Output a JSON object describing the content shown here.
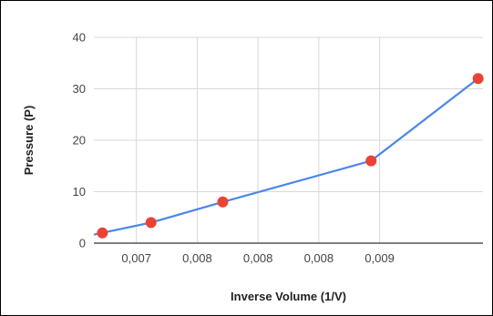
{
  "chart_data": {
    "type": "line",
    "title": "",
    "xlabel": "Inverse Volume (1/V)",
    "ylabel": "Pressure (P)",
    "xlim": [
      0.00665,
      0.00985
    ],
    "ylim": [
      0,
      40
    ],
    "grid": true,
    "legend": "none",
    "y_ticks": [
      0,
      10,
      20,
      30,
      40
    ],
    "x_tick_values": [
      0.007,
      0.0075,
      0.008,
      0.0085,
      0.009
    ],
    "x_tick_labels": [
      "0,007",
      "0,008",
      "0,008",
      "0,008",
      "0,009"
    ],
    "series": [
      {
        "x": [
          0.00672,
          0.00712,
          0.00771,
          0.00893,
          0.00981
        ],
        "y": [
          2,
          4,
          8,
          16,
          32
        ],
        "line_color": "#4a86e8",
        "marker_color": "#ea4335"
      }
    ]
  }
}
